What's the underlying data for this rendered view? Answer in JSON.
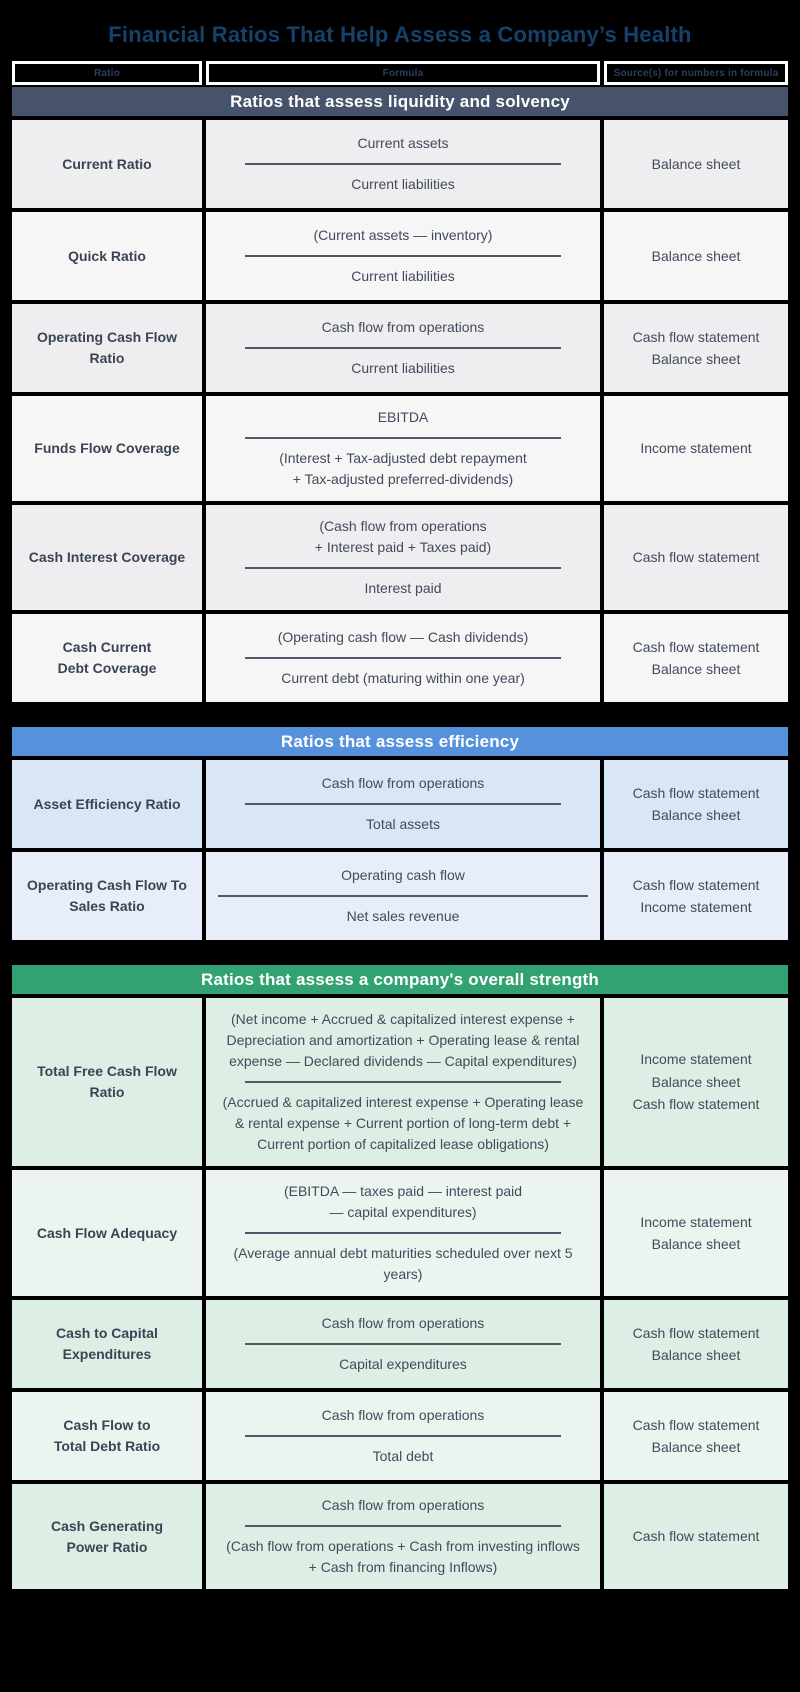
{
  "title": "Financial Ratios That Help Assess a Company’s Health",
  "colors": {
    "background": "#000000",
    "title_text": "#15416b",
    "column_header_text": "#2c3e5f",
    "column_header_border": "#ffffff",
    "fraction_line": "#4e5969",
    "body_text": "#414b5d"
  },
  "columns": [
    "Ratio",
    "Formula",
    "Source(s) for numbers in formula"
  ],
  "sections": [
    {
      "header": "Ratios that assess liquidity and solvency",
      "header_color": "#47526b",
      "row_colors": [
        "#eeeef0",
        "#f6f6f7"
      ],
      "rows": [
        {
          "ratio": "Current Ratio",
          "numerator": "Current assets",
          "denominator": "Current liabilities",
          "sources": "Balance sheet"
        },
        {
          "ratio": "Quick Ratio",
          "numerator": "(Current assets — inventory)",
          "denominator": "Current liabilities",
          "sources": "Balance sheet"
        },
        {
          "ratio": "Operating Cash Flow\nRatio",
          "numerator": "Cash flow from operations",
          "denominator": "Current liabilities",
          "sources": "Cash flow statement\nBalance sheet"
        },
        {
          "ratio": "Funds Flow Coverage",
          "numerator": "EBITDA",
          "denominator": "(Interest + Tax-adjusted debt repayment\n+ Tax-adjusted preferred-dividends)",
          "sources": "Income statement"
        },
        {
          "ratio": "Cash Interest Coverage",
          "numerator": "(Cash flow from operations\n+ Interest paid + Taxes paid)",
          "denominator": "Interest paid",
          "sources": "Cash flow statement"
        },
        {
          "ratio": "Cash Current\nDebt Coverage",
          "numerator": "(Operating cash flow — Cash dividends)",
          "denominator": "Current debt (maturing within one year)",
          "sources": "Cash flow statement\nBalance sheet"
        }
      ]
    },
    {
      "header": "Ratios that assess efficiency",
      "header_color": "#5591dc",
      "row_colors": [
        "#d9e6f6",
        "#e7eefa"
      ],
      "rows": [
        {
          "ratio": "Asset Efficiency Ratio",
          "numerator": "Cash flow from operations",
          "denominator": "Total assets",
          "sources": "Cash flow statement\nBalance sheet"
        },
        {
          "ratio": "Operating Cash Flow To\nSales Ratio",
          "numerator": "Operating cash flow",
          "denominator": "Net sales revenue",
          "sources": "Cash flow statement\nIncome statement",
          "wide_divider": true
        }
      ]
    },
    {
      "header": "Ratios that assess a company's overall strength",
      "header_color": "#33a273",
      "row_colors": [
        "#ddeee5",
        "#ecf4ef"
      ],
      "rows": [
        {
          "ratio": "Total Free Cash Flow\nRatio",
          "numerator": "(Net income + Accrued & capitalized interest expense +\nDepreciation and amortization + Operating lease & rental\nexpense — Declared dividends — Capital expenditures)",
          "denominator": "(Accrued & capitalized interest expense + Operating lease\n& rental expense + Current portion of long-term debt +\nCurrent portion of capitalized lease obligations)",
          "sources": "Income statement\nBalance sheet\nCash flow statement"
        },
        {
          "ratio": "Cash Flow Adequacy",
          "numerator": "(EBITDA — taxes paid — interest paid\n— capital expenditures)",
          "denominator": "(Average annual debt maturities scheduled over next 5\nyears)",
          "sources": "Income statement\nBalance sheet"
        },
        {
          "ratio": "Cash to Capital\nExpenditures",
          "numerator": "Cash flow from operations",
          "denominator": "Capital expenditures",
          "sources": "Cash flow statement\nBalance sheet"
        },
        {
          "ratio": "Cash Flow to\nTotal Debt Ratio",
          "numerator": "Cash flow from operations",
          "denominator": "Total debt",
          "sources": "Cash flow statement\nBalance sheet"
        },
        {
          "ratio": "Cash Generating\nPower Ratio",
          "numerator": "Cash flow from operations",
          "denominator": "(Cash flow from operations + Cash from investing inflows\n+ Cash from financing Inflows)",
          "sources": "Cash flow statement"
        }
      ]
    }
  ]
}
